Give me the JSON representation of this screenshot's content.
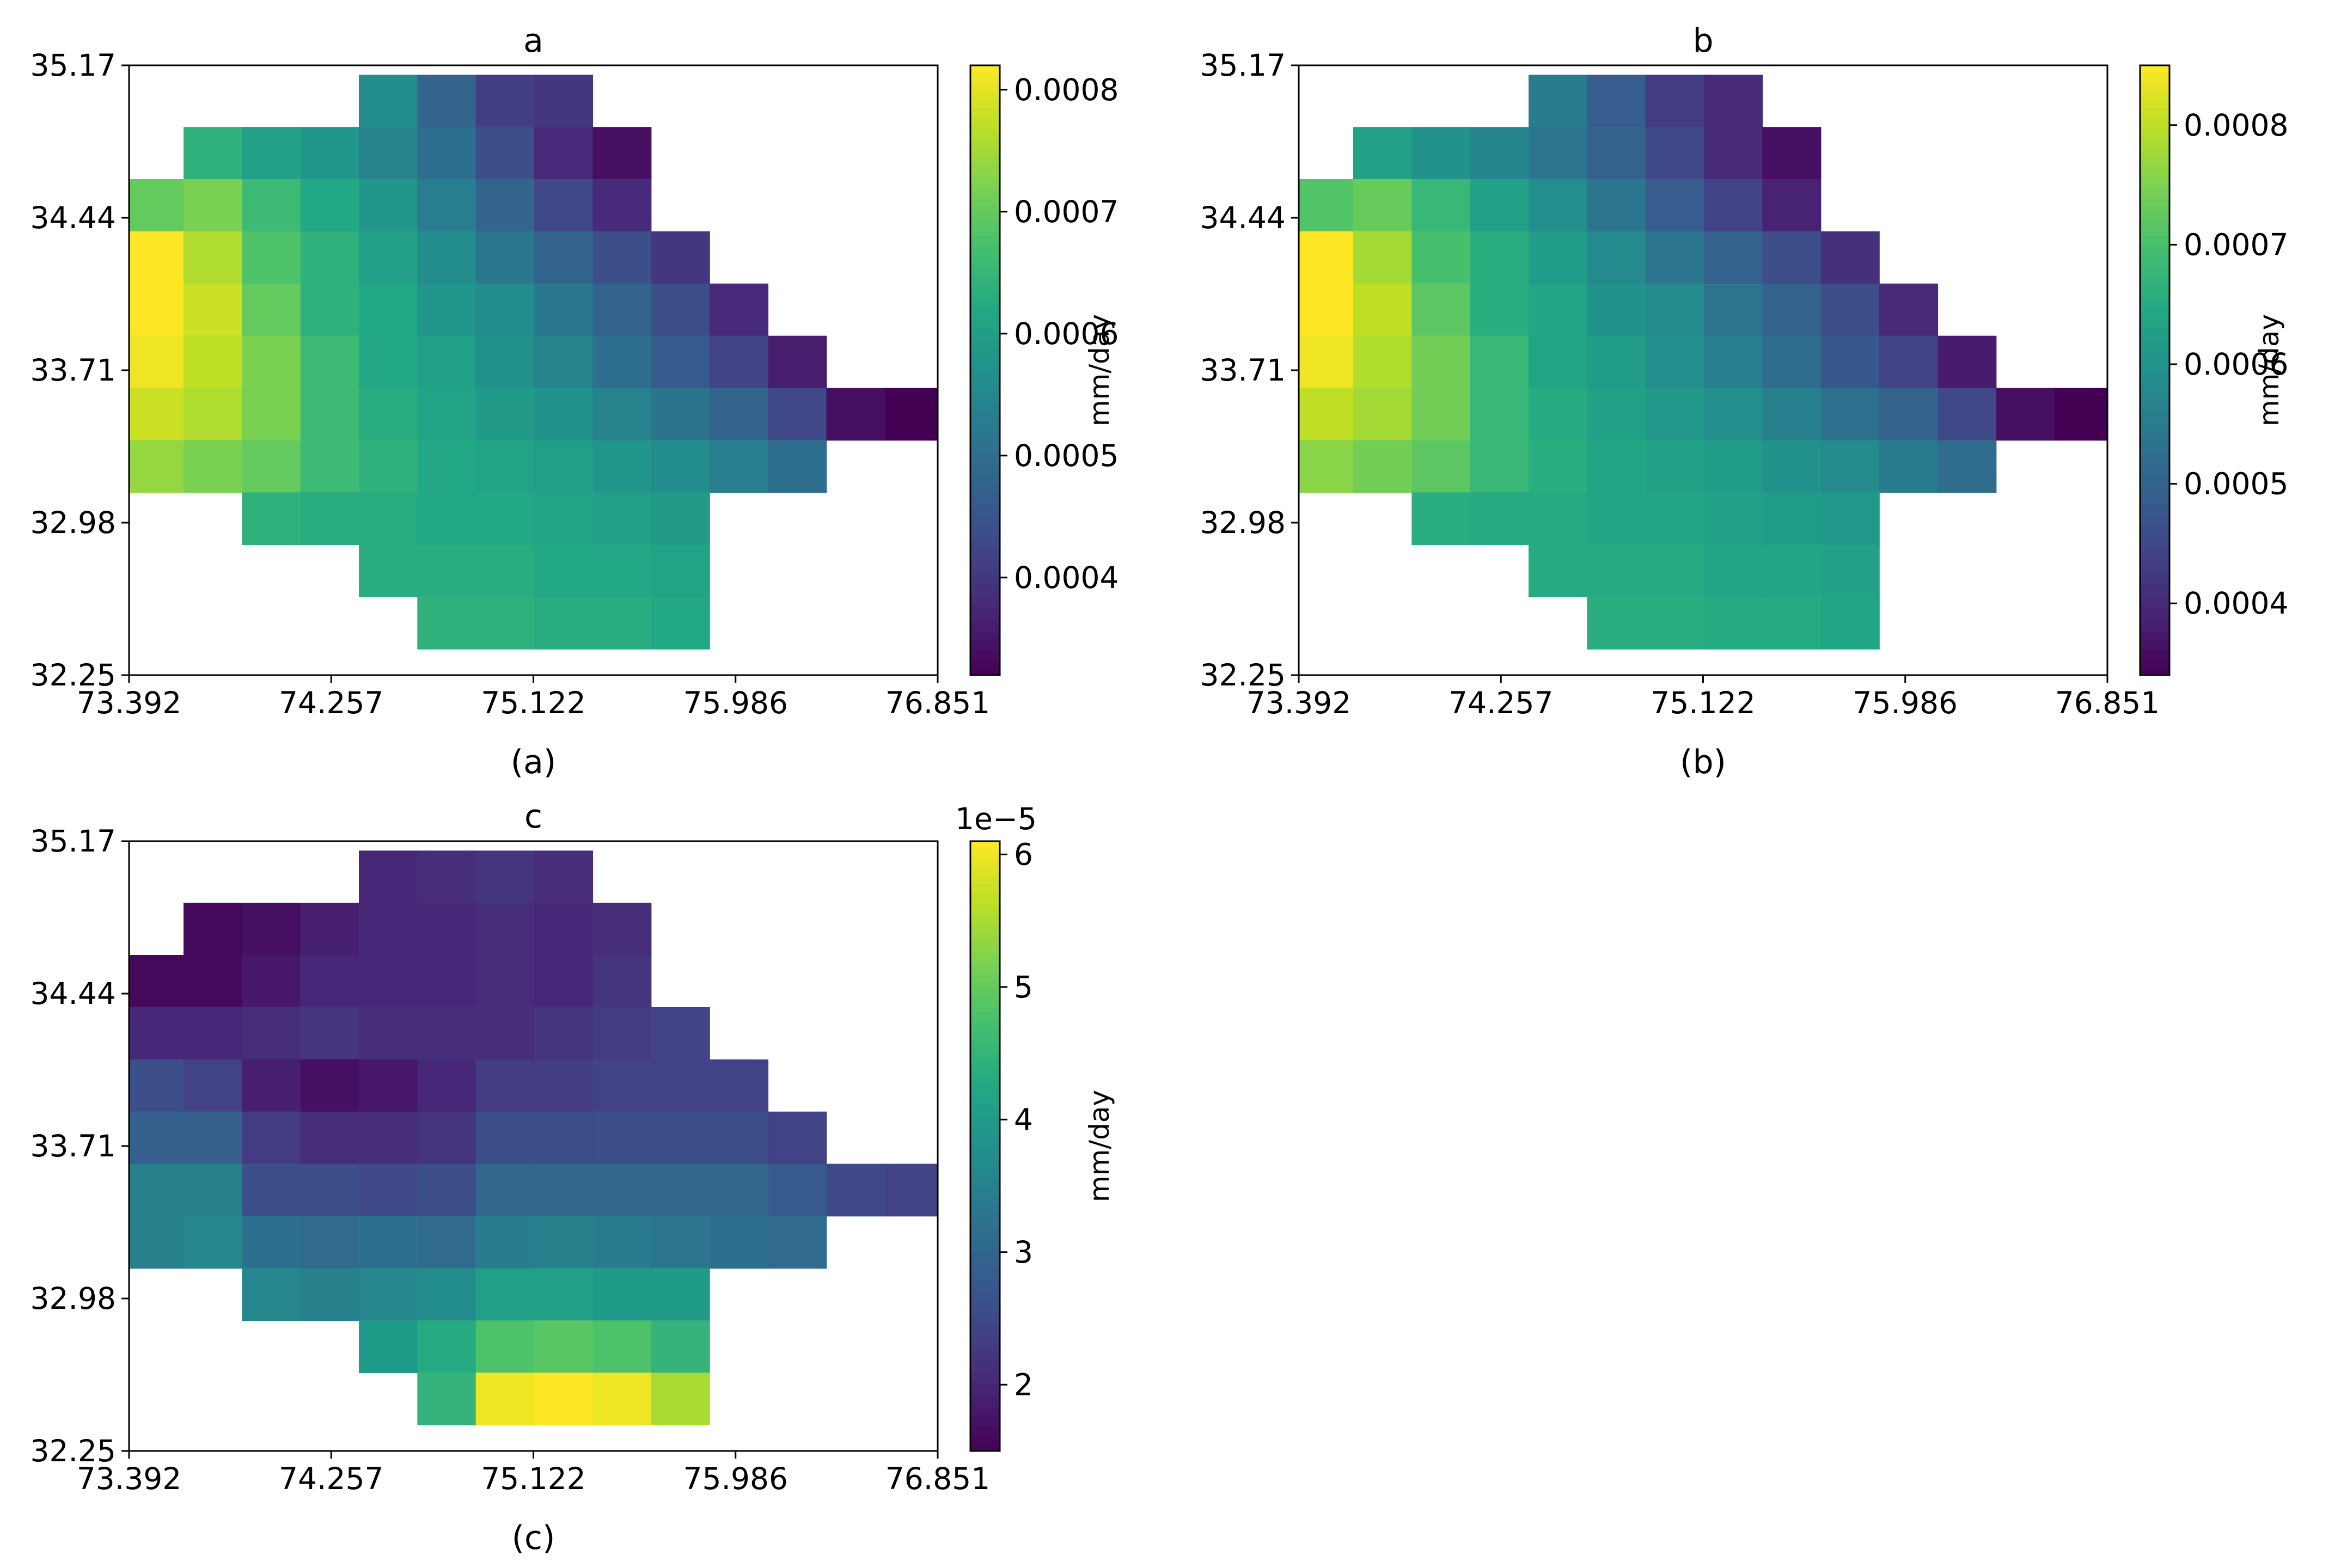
{
  "figure": {
    "colormap": "viridis",
    "colormap_stops": [
      "#440154",
      "#482475",
      "#414487",
      "#355f8d",
      "#2a788e",
      "#21918c",
      "#22a884",
      "#44bf70",
      "#7ad151",
      "#bddf26",
      "#fde725"
    ],
    "panels": [
      {
        "title": "a",
        "caption": "(a)",
        "xticks": [
          "73.392",
          "74.257",
          "75.122",
          "75.986",
          "76.851"
        ],
        "yticks": [
          "35.17",
          "34.44",
          "33.71",
          "32.98",
          "32.25"
        ],
        "colorbar": {
          "label": "mm/day",
          "ticks": [
            "0.0004",
            "0.0005",
            "0.0006",
            "0.0007",
            "0.0008"
          ],
          "multiplier": ""
        }
      },
      {
        "title": "b",
        "caption": "(b)",
        "xticks": [
          "73.392",
          "74.257",
          "75.122",
          "75.986",
          "76.851"
        ],
        "yticks": [
          "35.17",
          "34.44",
          "33.71",
          "32.98",
          "32.25"
        ],
        "colorbar": {
          "label": "mm/day",
          "ticks": [
            "0.0004",
            "0.0005",
            "0.0006",
            "0.0007",
            "0.0008"
          ],
          "multiplier": ""
        }
      },
      {
        "title": "c",
        "caption": "(c)",
        "xticks": [
          "73.392",
          "74.257",
          "75.122",
          "75.986",
          "76.851"
        ],
        "yticks": [
          "35.17",
          "34.44",
          "33.71",
          "32.98",
          "32.25"
        ],
        "colorbar": {
          "label": "mm/day",
          "ticks": [
            "2",
            "3",
            "4",
            "5",
            "6"
          ],
          "multiplier": "1e−5"
        }
      }
    ]
  },
  "chart_data": [
    {
      "type": "heatmap",
      "title": "a",
      "xlabel": "",
      "ylabel": "",
      "xlim": [
        73.392,
        76.851
      ],
      "ylim": [
        32.25,
        35.17
      ],
      "color_range": [
        0.00032,
        0.00082
      ],
      "units": "mm/day",
      "columns_lon": [
        73.5,
        73.75,
        74.0,
        74.25,
        74.5,
        74.75,
        75.0,
        75.25,
        75.5,
        75.75,
        76.0,
        76.25,
        76.5,
        76.75
      ],
      "rows_lat": [
        35.0,
        34.75,
        34.5,
        34.25,
        34.0,
        33.75,
        33.5,
        33.25,
        33.0,
        32.75,
        32.5
      ],
      "values": [
        [
          null,
          null,
          null,
          null,
          0.00056,
          0.00048,
          0.00041,
          0.0004,
          null,
          null,
          null,
          null,
          null,
          null
        ],
        [
          null,
          0.00064,
          0.0006,
          0.00058,
          0.00054,
          0.0005,
          0.00044,
          0.00038,
          0.00034,
          null,
          null,
          null,
          null,
          null
        ],
        [
          0.0007,
          0.00072,
          0.00066,
          0.00062,
          0.00058,
          0.00053,
          0.00048,
          0.00043,
          0.00038,
          null,
          null,
          null,
          null,
          null
        ],
        [
          0.00082,
          0.00076,
          0.00068,
          0.00064,
          0.0006,
          0.00056,
          0.00052,
          0.00048,
          0.00044,
          0.0004,
          null,
          null,
          null,
          null
        ],
        [
          0.00082,
          0.00078,
          0.0007,
          0.00064,
          0.00062,
          0.00058,
          0.00056,
          0.00052,
          0.00048,
          0.00044,
          0.00038,
          null,
          null,
          null
        ],
        [
          0.00081,
          0.00077,
          0.00072,
          0.00066,
          0.00062,
          0.0006,
          0.00057,
          0.00054,
          0.0005,
          0.00046,
          0.00042,
          0.00036,
          null,
          null
        ],
        [
          0.00078,
          0.00076,
          0.00072,
          0.00066,
          0.00063,
          0.00061,
          0.00059,
          0.00057,
          0.00054,
          0.00051,
          0.00048,
          0.00043,
          0.00034,
          0.00032
        ],
        [
          0.00074,
          0.00072,
          0.0007,
          0.00066,
          0.00064,
          0.00062,
          0.00061,
          0.0006,
          0.00058,
          0.00056,
          0.00053,
          0.0005,
          null,
          null
        ],
        [
          null,
          null,
          0.00064,
          0.00063,
          0.00063,
          0.00062,
          0.00062,
          0.00061,
          0.0006,
          0.00059,
          null,
          null,
          null,
          null
        ],
        [
          null,
          null,
          null,
          null,
          0.00063,
          0.00063,
          0.00063,
          0.00062,
          0.00062,
          0.00061,
          null,
          null,
          null,
          null
        ],
        [
          null,
          null,
          null,
          null,
          null,
          0.00064,
          0.00064,
          0.00063,
          0.00063,
          0.00062,
          null,
          null,
          null,
          null
        ]
      ]
    },
    {
      "type": "heatmap",
      "title": "b",
      "xlabel": "",
      "ylabel": "",
      "xlim": [
        73.392,
        76.851
      ],
      "ylim": [
        32.25,
        35.17
      ],
      "color_range": [
        0.00034,
        0.00085
      ],
      "units": "mm/day",
      "columns_lon": [
        73.5,
        73.75,
        74.0,
        74.25,
        74.5,
        74.75,
        75.0,
        75.25,
        75.5,
        75.75,
        76.0,
        76.25,
        76.5,
        76.75
      ],
      "rows_lat": [
        35.0,
        34.75,
        34.5,
        34.25,
        34.0,
        33.75,
        33.5,
        33.25,
        33.0,
        32.75,
        32.5
      ],
      "values": [
        [
          null,
          null,
          null,
          null,
          0.00055,
          0.00049,
          0.00043,
          0.0004,
          null,
          null,
          null,
          null,
          null,
          null
        ],
        [
          null,
          0.00063,
          0.0006,
          0.00057,
          0.00054,
          0.0005,
          0.00045,
          0.0004,
          0.00036,
          null,
          null,
          null,
          null,
          null
        ],
        [
          0.00071,
          0.00073,
          0.00068,
          0.00063,
          0.00059,
          0.00054,
          0.00049,
          0.00044,
          0.00039,
          null,
          null,
          null,
          null,
          null
        ],
        [
          0.00085,
          0.00078,
          0.0007,
          0.00066,
          0.00062,
          0.00058,
          0.00054,
          0.0005,
          0.00046,
          0.00041,
          null,
          null,
          null,
          null
        ],
        [
          0.00085,
          0.0008,
          0.00072,
          0.00066,
          0.00064,
          0.0006,
          0.00058,
          0.00054,
          0.0005,
          0.00046,
          0.0004,
          null,
          null,
          null
        ],
        [
          0.00084,
          0.00079,
          0.00074,
          0.00068,
          0.00064,
          0.00062,
          0.00059,
          0.00056,
          0.00052,
          0.00048,
          0.00044,
          0.00038,
          null,
          null
        ],
        [
          0.0008,
          0.00078,
          0.00074,
          0.00068,
          0.00065,
          0.00063,
          0.00061,
          0.00059,
          0.00056,
          0.00053,
          0.0005,
          0.00045,
          0.00036,
          0.00034
        ],
        [
          0.00076,
          0.00074,
          0.00072,
          0.00068,
          0.00066,
          0.00064,
          0.00063,
          0.00062,
          0.0006,
          0.00058,
          0.00055,
          0.00052,
          null,
          null
        ],
        [
          null,
          null,
          0.00066,
          0.00065,
          0.00065,
          0.00064,
          0.00064,
          0.00063,
          0.00062,
          0.00061,
          null,
          null,
          null,
          null
        ],
        [
          null,
          null,
          null,
          null,
          0.00065,
          0.00065,
          0.00065,
          0.00064,
          0.00064,
          0.00063,
          null,
          null,
          null,
          null
        ],
        [
          null,
          null,
          null,
          null,
          null,
          0.00066,
          0.00066,
          0.00065,
          0.00065,
          0.00064,
          null,
          null,
          null,
          null
        ]
      ]
    },
    {
      "type": "heatmap",
      "title": "c",
      "xlabel": "",
      "ylabel": "",
      "xlim": [
        73.392,
        76.851
      ],
      "ylim": [
        32.25,
        35.17
      ],
      "color_range": [
        1.5e-05,
        6.1e-05
      ],
      "colorbar_multiplier": "1e−5",
      "units": "mm/day",
      "columns_lon": [
        73.5,
        73.75,
        74.0,
        74.25,
        74.5,
        74.75,
        75.0,
        75.25,
        75.5,
        75.75,
        76.0,
        76.25,
        76.5,
        76.75
      ],
      "rows_lat": [
        35.0,
        34.75,
        34.5,
        34.25,
        34.0,
        33.75,
        33.5,
        33.25,
        33.0,
        32.75,
        32.5
      ],
      "values": [
        [
          null,
          null,
          null,
          null,
          2e-05,
          2.1e-05,
          2.2e-05,
          2.1e-05,
          null,
          null,
          null,
          null,
          null,
          null
        ],
        [
          null,
          1.6e-05,
          1.7e-05,
          1.9e-05,
          2e-05,
          2e-05,
          2.1e-05,
          2e-05,
          2.1e-05,
          null,
          null,
          null,
          null,
          null
        ],
        [
          1.6e-05,
          1.6e-05,
          1.8e-05,
          2e-05,
          2e-05,
          2e-05,
          2.1e-05,
          2e-05,
          2.2e-05,
          null,
          null,
          null,
          null,
          null
        ],
        [
          2e-05,
          2e-05,
          2.1e-05,
          2.2e-05,
          2.1e-05,
          2.1e-05,
          2.1e-05,
          2.2e-05,
          2.3e-05,
          2.4e-05,
          null,
          null,
          null,
          null
        ],
        [
          2.6e-05,
          2.4e-05,
          1.9e-05,
          1.7e-05,
          1.8e-05,
          2e-05,
          2.3e-05,
          2.3e-05,
          2.4e-05,
          2.4e-05,
          2.4e-05,
          null,
          null,
          null
        ],
        [
          2.9e-05,
          2.9e-05,
          2.3e-05,
          2.1e-05,
          2.1e-05,
          2.2e-05,
          2.6e-05,
          2.6e-05,
          2.6e-05,
          2.6e-05,
          2.6e-05,
          2.4e-05,
          null,
          null
        ],
        [
          3.5e-05,
          3.5e-05,
          2.6e-05,
          2.6e-05,
          2.5e-05,
          2.6e-05,
          3e-05,
          3e-05,
          3e-05,
          3e-05,
          3e-05,
          2.8e-05,
          2.5e-05,
          2.4e-05
        ],
        [
          3.5e-05,
          3.6e-05,
          3.2e-05,
          3.1e-05,
          3.2e-05,
          3.1e-05,
          3.4e-05,
          3.5e-05,
          3.4e-05,
          3.3e-05,
          3.2e-05,
          3.1e-05,
          null,
          null
        ],
        [
          null,
          null,
          3.6e-05,
          3.5e-05,
          3.6e-05,
          3.7e-05,
          4.1e-05,
          4.1e-05,
          4e-05,
          4e-05,
          null,
          null,
          null,
          null
        ],
        [
          null,
          null,
          null,
          null,
          4e-05,
          4.3e-05,
          4.8e-05,
          4.9e-05,
          4.8e-05,
          4.5e-05,
          null,
          null,
          null,
          null
        ],
        [
          null,
          null,
          null,
          null,
          null,
          4.5e-05,
          6e-05,
          6.1e-05,
          6e-05,
          5.5e-05,
          null,
          null,
          null,
          null
        ]
      ]
    }
  ]
}
